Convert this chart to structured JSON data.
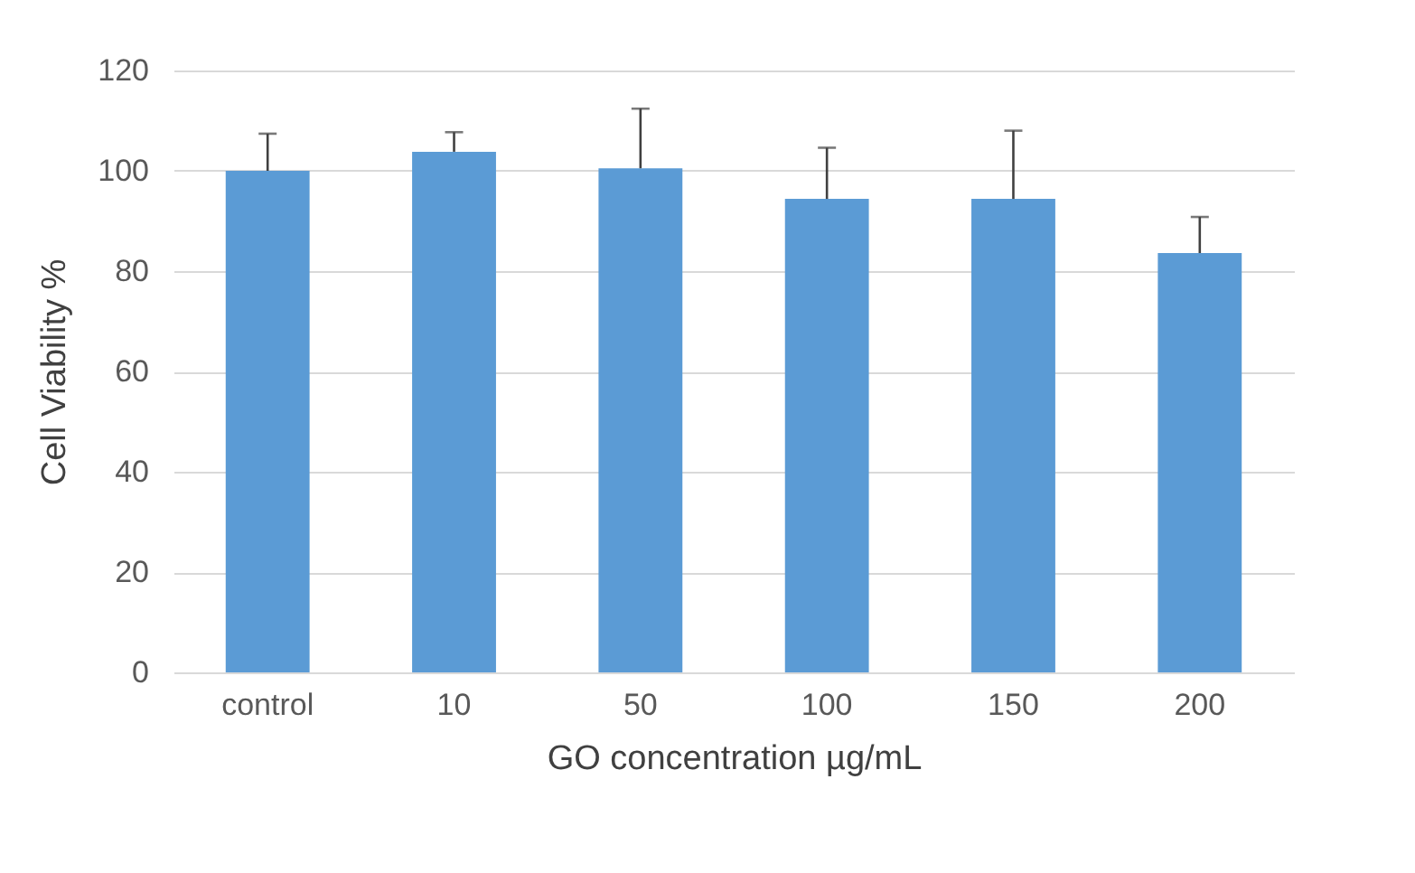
{
  "chart_data": {
    "type": "bar",
    "xlabel": "GO concentration µg/mL",
    "ylabel": "Cell Viability %",
    "categories": [
      "control",
      "10",
      "50",
      "100",
      "150",
      "200"
    ],
    "values": [
      100,
      103.8,
      100.5,
      94.4,
      94.4,
      83.6
    ],
    "errors": [
      [
        100,
        107.4
      ],
      [
        103.8,
        107.7
      ],
      [
        100.5,
        112.4
      ],
      [
        94.4,
        104.6
      ],
      [
        94.4,
        108
      ],
      [
        83.6,
        90.8
      ]
    ],
    "color": "#5b9bd5",
    "ylim": [
      0,
      120
    ],
    "yticks": [
      0,
      20,
      40,
      60,
      80,
      100,
      120
    ],
    "grid": "y"
  }
}
